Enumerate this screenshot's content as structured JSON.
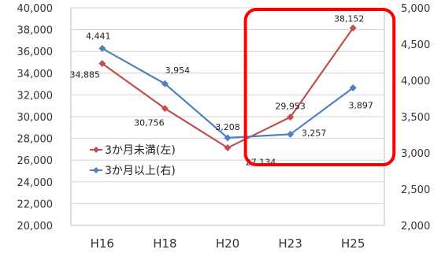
{
  "chart_data": {
    "type": "line",
    "categories": [
      "H16",
      "H18",
      "H20",
      "H23",
      "H25"
    ],
    "y_left": {
      "range": [
        20000,
        40000
      ],
      "ticks": [
        "20,000",
        "22,000",
        "24,000",
        "26,000",
        "28,000",
        "30,000",
        "32,000",
        "34,000",
        "36,000",
        "38,000",
        "40,000"
      ]
    },
    "y_right": {
      "range": [
        2000,
        5000
      ],
      "ticks": [
        "2,000",
        "2,500",
        "3,000",
        "3,500",
        "4,000",
        "4,500",
        "5,000"
      ]
    },
    "grid": true,
    "legend_placement": "lower-left",
    "series": [
      {
        "name": "3か月未満(左)",
        "axis": "left",
        "color": "#c0504d",
        "values": [
          34885,
          30756,
          27134,
          29953,
          38152
        ],
        "labels": [
          "34,885",
          "30,756",
          "27,134",
          "29,953",
          "38,152"
        ]
      },
      {
        "name": "3か月以上(右)",
        "axis": "right",
        "color": "#4f81bd",
        "values": [
          4441,
          3954,
          3208,
          3257,
          3897
        ],
        "labels": [
          "4,441",
          "3,954",
          "3,208",
          "3,257",
          "3,897"
        ]
      }
    ],
    "highlight": {
      "from": "H23",
      "to": "H25",
      "color": "#ff0000"
    }
  }
}
